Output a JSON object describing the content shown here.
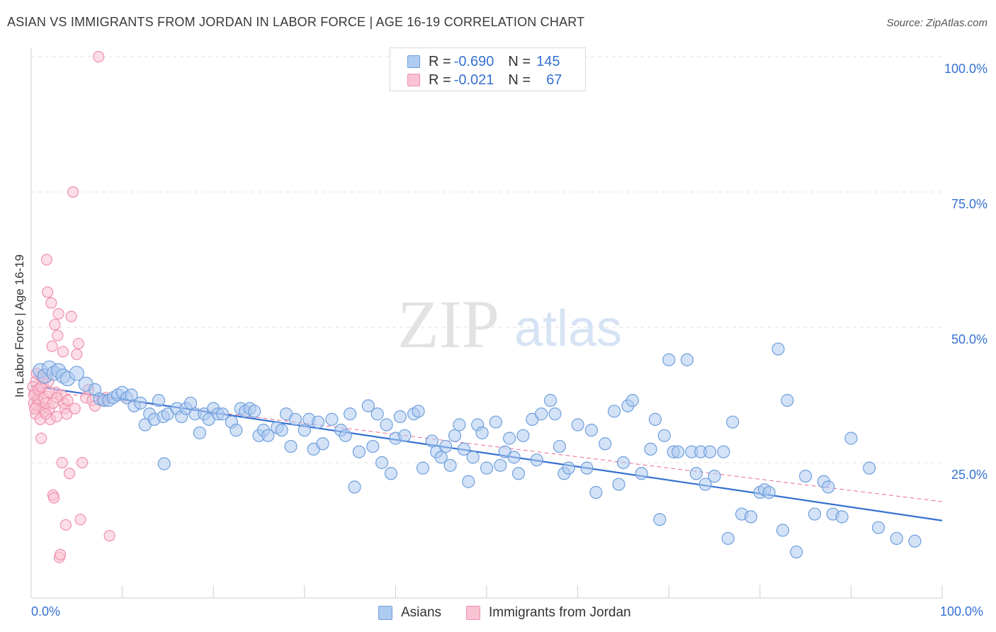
{
  "title": "ASIAN VS IMMIGRANTS FROM JORDAN IN LABOR FORCE | AGE 16-19 CORRELATION CHART",
  "source": "Source: ZipAtlas.com",
  "watermark": {
    "zip": "ZIP",
    "atlas": "atlas"
  },
  "colors": {
    "blue": "#3571d2",
    "blue_fill": "#aecbf0",
    "blue_stroke": "#6f9fdc",
    "pink": "#e96d93",
    "pink_fill": "#f9c3d3",
    "pink_stroke": "#ef91ae",
    "grid": "#e2e2e2"
  },
  "legend_top": {
    "rows": [
      {
        "r_label": "R = ",
        "r_value": "-0.690",
        "n_label": "N = ",
        "n_value": "145"
      },
      {
        "r_label": "R = ",
        "r_value": "-0.021",
        "n_label": "N = ",
        "n_value": "67"
      }
    ]
  },
  "legend_bottom": [
    "Asians",
    "Immigrants from Jordan"
  ],
  "chart_data": {
    "type": "scatter",
    "ylabel": "In Labor Force | Age 16-19",
    "x_tick_labels": {
      "left": "0.0%",
      "right": "100.0%"
    },
    "y_tick_labels": [
      "25.0%",
      "50.0%",
      "75.0%",
      "100.0%"
    ],
    "xlim": [
      0,
      100
    ],
    "ylim": [
      0,
      100
    ],
    "y_ticks": [
      25,
      50,
      75,
      100
    ],
    "grid": true,
    "series": [
      {
        "name": "Asians",
        "R": -0.69,
        "N": 145,
        "trend": {
          "x0": 0,
          "y0": 39.2,
          "x1": 100,
          "y1": 14.3
        },
        "points": [
          [
            1,
            42
          ],
          [
            1.5,
            41
          ],
          [
            2,
            42.5
          ],
          [
            2.5,
            41.5
          ],
          [
            3,
            42
          ],
          [
            3.5,
            41
          ],
          [
            4,
            40.5
          ],
          [
            5,
            41.5
          ],
          [
            6,
            39.5
          ],
          [
            7,
            38.5
          ],
          [
            7.5,
            36.8
          ],
          [
            8,
            36.5
          ],
          [
            8.5,
            36.5
          ],
          [
            9,
            37
          ],
          [
            9.5,
            37.5
          ],
          [
            10,
            38
          ],
          [
            10.5,
            37
          ],
          [
            11,
            37.5
          ],
          [
            11.3,
            35.5
          ],
          [
            12,
            36
          ],
          [
            12.5,
            32
          ],
          [
            13,
            34
          ],
          [
            13.5,
            33
          ],
          [
            14,
            36.5
          ],
          [
            14.5,
            33.5
          ],
          [
            14.6,
            24.8
          ],
          [
            15,
            34
          ],
          [
            16,
            35
          ],
          [
            16.5,
            33.5
          ],
          [
            17,
            35
          ],
          [
            17.5,
            36
          ],
          [
            18,
            34
          ],
          [
            18.5,
            30.5
          ],
          [
            19,
            34
          ],
          [
            19.5,
            33
          ],
          [
            20,
            35
          ],
          [
            20.5,
            34
          ],
          [
            21,
            34
          ],
          [
            22,
            32.5
          ],
          [
            22.5,
            31
          ],
          [
            23,
            35
          ],
          [
            23.5,
            34.5
          ],
          [
            24,
            35
          ],
          [
            24.5,
            34.5
          ],
          [
            25,
            30
          ],
          [
            25.5,
            31
          ],
          [
            26,
            30
          ],
          [
            27,
            31.5
          ],
          [
            27.5,
            31
          ],
          [
            28,
            34
          ],
          [
            28.5,
            28
          ],
          [
            29,
            33
          ],
          [
            30,
            31
          ],
          [
            30.5,
            33
          ],
          [
            31,
            27.5
          ],
          [
            31.5,
            32.5
          ],
          [
            32,
            28.5
          ],
          [
            33,
            33
          ],
          [
            34,
            31
          ],
          [
            34.5,
            30
          ],
          [
            35,
            34
          ],
          [
            35.5,
            20.5
          ],
          [
            36,
            27
          ],
          [
            37,
            35.5
          ],
          [
            37.5,
            28
          ],
          [
            38,
            34
          ],
          [
            38.5,
            25
          ],
          [
            39,
            32
          ],
          [
            39.5,
            23
          ],
          [
            40,
            29.5
          ],
          [
            40.5,
            33.5
          ],
          [
            41,
            30
          ],
          [
            42,
            34
          ],
          [
            42.5,
            34.5
          ],
          [
            43,
            24
          ],
          [
            44,
            29
          ],
          [
            44.5,
            27
          ],
          [
            45,
            26
          ],
          [
            45.5,
            28
          ],
          [
            46,
            24.5
          ],
          [
            46.5,
            30
          ],
          [
            47,
            32
          ],
          [
            47.5,
            27.5
          ],
          [
            48,
            21.5
          ],
          [
            48.5,
            26
          ],
          [
            49,
            32
          ],
          [
            49.5,
            30.5
          ],
          [
            50,
            24
          ],
          [
            51,
            32.5
          ],
          [
            51.5,
            24.5
          ],
          [
            52,
            27
          ],
          [
            52.5,
            29.5
          ],
          [
            53,
            26
          ],
          [
            53.5,
            23
          ],
          [
            54,
            30
          ],
          [
            55,
            33
          ],
          [
            55.5,
            25.5
          ],
          [
            56,
            34
          ],
          [
            57,
            36.5
          ],
          [
            57.5,
            34
          ],
          [
            58,
            28
          ],
          [
            58.5,
            23
          ],
          [
            59,
            24
          ],
          [
            60,
            32
          ],
          [
            61,
            24
          ],
          [
            61.5,
            31
          ],
          [
            62,
            19.5
          ],
          [
            63,
            28.5
          ],
          [
            64,
            34.5
          ],
          [
            64.5,
            21
          ],
          [
            65,
            25
          ],
          [
            65.5,
            35.5
          ],
          [
            66,
            36.5
          ],
          [
            67,
            23
          ],
          [
            68,
            27.5
          ],
          [
            68.5,
            33
          ],
          [
            69,
            14.5
          ],
          [
            69.5,
            30
          ],
          [
            70,
            44
          ],
          [
            70.5,
            27
          ],
          [
            71,
            27
          ],
          [
            72,
            44
          ],
          [
            72.5,
            27
          ],
          [
            73,
            23
          ],
          [
            73.5,
            27
          ],
          [
            74,
            21
          ],
          [
            74.5,
            27
          ],
          [
            75,
            22.5
          ],
          [
            76,
            27
          ],
          [
            76.5,
            11
          ],
          [
            77,
            32.5
          ],
          [
            78,
            15.5
          ],
          [
            79,
            15
          ],
          [
            80,
            19.5
          ],
          [
            80.5,
            20
          ],
          [
            81,
            19.5
          ],
          [
            82,
            46
          ],
          [
            82.5,
            12.5
          ],
          [
            83,
            36.5
          ],
          [
            84,
            8.5
          ],
          [
            85,
            22.5
          ],
          [
            86,
            15.5
          ],
          [
            87,
            21.5
          ],
          [
            87.5,
            20.5
          ],
          [
            88,
            15.5
          ],
          [
            89,
            15
          ],
          [
            90,
            29.5
          ],
          [
            92,
            24
          ],
          [
            93,
            13
          ],
          [
            95,
            11
          ],
          [
            97,
            10.5
          ]
        ]
      },
      {
        "name": "Immigrants from Jordan",
        "R": -0.021,
        "N": 67,
        "trend": {
          "x0": 0,
          "y0": 38.5,
          "x1": 100,
          "y1": 17.8
        },
        "points": [
          [
            0.3,
            36
          ],
          [
            0.4,
            38
          ],
          [
            0.5,
            40
          ],
          [
            0.5,
            34
          ],
          [
            0.6,
            35.5
          ],
          [
            0.7,
            37
          ],
          [
            0.8,
            36.5
          ],
          [
            0.9,
            38
          ],
          [
            1,
            41
          ],
          [
            1,
            33
          ],
          [
            1.1,
            29.5
          ],
          [
            1.2,
            35
          ],
          [
            1.3,
            39.5
          ],
          [
            1.4,
            37
          ],
          [
            1.5,
            34.5
          ],
          [
            1.6,
            36
          ],
          [
            1.7,
            62.5
          ],
          [
            1.8,
            56.5
          ],
          [
            1.9,
            40
          ],
          [
            2,
            35
          ],
          [
            2.1,
            33
          ],
          [
            2.2,
            54.5
          ],
          [
            2.3,
            46.5
          ],
          [
            2.4,
            19
          ],
          [
            2.5,
            18.5
          ],
          [
            2.6,
            50.5
          ],
          [
            2.7,
            38
          ],
          [
            2.8,
            33.5
          ],
          [
            2.9,
            48.5
          ],
          [
            3,
            52.5
          ],
          [
            3.1,
            7.5
          ],
          [
            3.2,
            8
          ],
          [
            3.3,
            37.5
          ],
          [
            3.4,
            25
          ],
          [
            3.5,
            45.5
          ],
          [
            3.6,
            36
          ],
          [
            3.7,
            35
          ],
          [
            3.8,
            13.5
          ],
          [
            3.9,
            34
          ],
          [
            4,
            36.5
          ],
          [
            4.2,
            23
          ],
          [
            4.4,
            52
          ],
          [
            4.6,
            75
          ],
          [
            4.8,
            35
          ],
          [
            5,
            45
          ],
          [
            5.2,
            47
          ],
          [
            5.4,
            14.5
          ],
          [
            5.6,
            25
          ],
          [
            6,
            37
          ],
          [
            6.3,
            38.5
          ],
          [
            6.7,
            36.5
          ],
          [
            7,
            35.5
          ],
          [
            7.4,
            100
          ],
          [
            7.8,
            36.5
          ],
          [
            8.2,
            37
          ],
          [
            8.6,
            11.5
          ],
          [
            0.2,
            39
          ],
          [
            0.3,
            37.5
          ],
          [
            0.4,
            35
          ],
          [
            0.6,
            41.5
          ],
          [
            0.8,
            38.5
          ],
          [
            1.1,
            39
          ],
          [
            1.3,
            40.5
          ],
          [
            1.6,
            34
          ],
          [
            2,
            38
          ],
          [
            2.4,
            36
          ],
          [
            2.8,
            37
          ]
        ]
      }
    ]
  }
}
